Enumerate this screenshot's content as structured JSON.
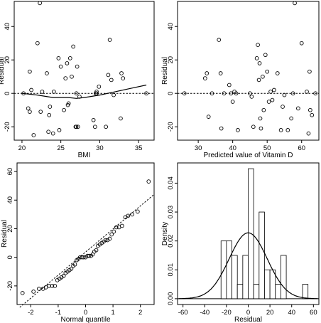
{
  "chart_data": [
    {
      "type": "scatter",
      "xlabel": "BMI",
      "ylabel": "Residual",
      "xlim": [
        19,
        37
      ],
      "ylim": [
        -28,
        55
      ],
      "xticks": [
        20,
        25,
        30,
        35
      ],
      "yticks": [
        -20,
        0,
        20,
        40
      ],
      "x": [
        20.2,
        20.8,
        21.0,
        21.0,
        21.2,
        21.5,
        22.0,
        22.3,
        22.4,
        22.6,
        23.2,
        23.4,
        23.5,
        23.6,
        24.0,
        24.1,
        24.7,
        24.8,
        25.0,
        25.4,
        25.6,
        25.8,
        25.9,
        26.0,
        26.2,
        26.4,
        26.6,
        26.9,
        27.0,
        27.0,
        27.1,
        27.2,
        27.4,
        29.2,
        29.4,
        29.5,
        29.6,
        29.6,
        29.9,
        30.8,
        31.1,
        31.3,
        31.5,
        31.8,
        32.7,
        32.8,
        33.0,
        36.0
      ],
      "y": [
        0,
        -9,
        13,
        -11,
        2,
        -25,
        30,
        54,
        -11,
        1,
        12,
        -23,
        -13,
        -8,
        -24,
        1,
        21,
        -22,
        16,
        -10,
        9,
        18,
        -7,
        -6,
        21,
        10,
        28,
        -20,
        -20,
        0,
        16,
        -20,
        -2,
        -16,
        -20,
        0,
        0,
        1,
        4,
        -20,
        11,
        32,
        8,
        -1,
        -15,
        12,
        9,
        0
      ],
      "reference_line": 0,
      "smooth_line": {
        "x": [
          20,
          22,
          24,
          26,
          27,
          28,
          30,
          32,
          34,
          36
        ],
        "y": [
          0,
          -1,
          -2.5,
          -2.5,
          -3,
          -2.5,
          -1,
          1,
          3,
          5
        ]
      }
    },
    {
      "type": "scatter",
      "xlabel": "Predicted value of Vitamin D",
      "ylabel": "Residual",
      "xlim": [
        24,
        65
      ],
      "ylim": [
        -28,
        55
      ],
      "xticks": [
        30,
        40,
        50,
        60
      ],
      "yticks": [
        -20,
        0,
        20,
        40
      ],
      "x": [
        26,
        32,
        32.5,
        33,
        34,
        36,
        36.5,
        36.7,
        37.5,
        39,
        39.5,
        40,
        40.5,
        41,
        41.5,
        45,
        45.5,
        46,
        47,
        47.3,
        47.6,
        47.8,
        48,
        48.2,
        48.7,
        49,
        49.5,
        50,
        50.5,
        51,
        51.5,
        52,
        53,
        54,
        54.5,
        55,
        56,
        57,
        57.5,
        58,
        59,
        60,
        61.5,
        62,
        62.3,
        62.5,
        63,
        64
      ],
      "y": [
        0,
        9,
        12,
        -14,
        0,
        32,
        12,
        -21,
        0,
        5,
        0,
        -5,
        1,
        0,
        -22,
        0,
        -2,
        -20,
        21,
        29,
        8,
        18,
        -15,
        -21,
        10,
        -10,
        23,
        13,
        -5,
        1,
        -4,
        2,
        12,
        -22,
        -8,
        -1,
        -22,
        -15,
        0,
        54,
        -9,
        30,
        1,
        -24,
        13,
        -10,
        -13,
        0
      ],
      "reference_line": 0
    },
    {
      "type": "scatter",
      "xlabel": "Normal quantile",
      "ylabel": "Residual",
      "xlim": [
        -2.5,
        2.5
      ],
      "ylim": [
        -33,
        66
      ],
      "xticks": [
        -2,
        -1,
        0,
        1,
        2
      ],
      "yticks": [
        -20,
        0,
        20,
        40,
        60
      ],
      "x": [
        -2.3,
        -1.9,
        -1.7,
        -1.55,
        -1.45,
        -1.33,
        -1.22,
        -1.12,
        -1.03,
        -0.95,
        -0.88,
        -0.8,
        -0.73,
        -0.66,
        -0.59,
        -0.52,
        -0.45,
        -0.39,
        -0.32,
        -0.26,
        -0.2,
        -0.13,
        -0.07,
        0.0,
        0.07,
        0.13,
        0.2,
        0.26,
        0.32,
        0.39,
        0.45,
        0.52,
        0.59,
        0.66,
        0.73,
        0.8,
        0.88,
        0.95,
        1.03,
        1.12,
        1.22,
        1.33,
        1.45,
        1.55,
        1.7,
        1.9,
        2.3
      ],
      "y": [
        -25,
        -24,
        -22,
        -22,
        -21,
        -20,
        -20,
        -20,
        -16,
        -15,
        -14,
        -13,
        -11,
        -10,
        -9,
        -8,
        -6,
        -5,
        -2,
        -1,
        0,
        0,
        0,
        0,
        1,
        1,
        1,
        2,
        4,
        5,
        8,
        9,
        10,
        11,
        12,
        12,
        13,
        16,
        18,
        21,
        21,
        22,
        28,
        29,
        30,
        32,
        53
      ],
      "reference_line": {
        "x": [
          -2.4,
          2.5
        ],
        "y": [
          -35,
          44
        ]
      }
    },
    {
      "type": "bar",
      "xlabel": "Residual",
      "ylabel": "Density",
      "xlim": [
        -65,
        65
      ],
      "ylim": [
        -0.002,
        0.047
      ],
      "xticks": [
        -60,
        -40,
        -20,
        0,
        20,
        40,
        60
      ],
      "yticks": [
        0.0,
        0.01,
        0.02,
        0.03,
        0.04
      ],
      "bin_width": 5,
      "bins": [
        -25,
        -20,
        -15,
        -10,
        -5,
        0,
        5,
        10,
        15,
        20,
        25,
        30,
        50
      ],
      "values": [
        0.02,
        0.02,
        0.015,
        0.005,
        0.015,
        0.045,
        0.005,
        0.03,
        0.01,
        0.01,
        0.005,
        0.015,
        0.005
      ],
      "density_curve": {
        "mean": 0,
        "sd": 17.5
      }
    }
  ]
}
